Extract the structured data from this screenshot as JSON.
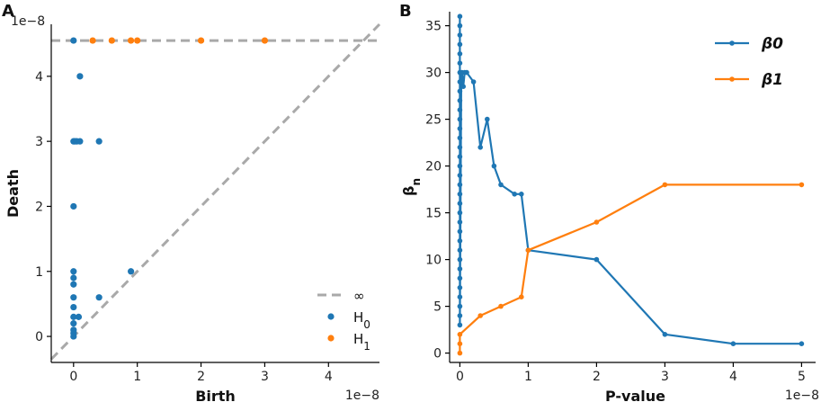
{
  "chart_data": [
    {
      "panel": "A",
      "type": "scatter",
      "xlabel": "Birth",
      "ylabel": "Death",
      "x_offset_label": "1e−8",
      "y_offset_label": "1e−8",
      "xlim": [
        -0.35,
        4.8
      ],
      "ylim": [
        -0.4,
        4.8
      ],
      "xticks": [
        0,
        1,
        2,
        3,
        4
      ],
      "yticks": [
        0,
        1,
        2,
        3,
        4
      ],
      "infinity_level": 4.55,
      "legend": {
        "position": "bottom-right",
        "entries": [
          {
            "label": "∞",
            "kind": "dashed-line",
            "color": "#a9a9a9"
          },
          {
            "label": "H",
            "sub": "0",
            "kind": "marker",
            "color": "#1f77b4"
          },
          {
            "label": "H",
            "sub": "1",
            "kind": "marker",
            "color": "#ff7f0e"
          }
        ]
      },
      "series": [
        {
          "name": "H0",
          "color": "#1f77b4",
          "points": [
            [
              0,
              4.55
            ],
            [
              0.1,
              4.0
            ],
            [
              0,
              3.0
            ],
            [
              0.02,
              3.0
            ],
            [
              0.05,
              3.0
            ],
            [
              0.1,
              3.0
            ],
            [
              0.4,
              3.0
            ],
            [
              0,
              2.0
            ],
            [
              0,
              1.0
            ],
            [
              0.9,
              1.0
            ],
            [
              0,
              0.9
            ],
            [
              0,
              0.8
            ],
            [
              0,
              0.6
            ],
            [
              0.4,
              0.6
            ],
            [
              0,
              0.45
            ],
            [
              0,
              0.3
            ],
            [
              0.08,
              0.3
            ],
            [
              0,
              0.2
            ],
            [
              0,
              0.1
            ],
            [
              0,
              0.05
            ],
            [
              0,
              0.0
            ]
          ]
        },
        {
          "name": "H1",
          "color": "#ff7f0e",
          "points": [
            [
              0.3,
              4.55
            ],
            [
              0.6,
              4.55
            ],
            [
              0.9,
              4.55
            ],
            [
              1.0,
              4.55
            ],
            [
              2.0,
              4.55
            ],
            [
              3.0,
              4.55
            ]
          ]
        }
      ]
    },
    {
      "panel": "B",
      "type": "line",
      "xlabel": "P-value",
      "ylabel": "β",
      "ylabel_sub": "n",
      "x_offset_label": "1e−8",
      "xlim": [
        -0.15,
        5.1
      ],
      "ylim": [
        -1,
        36.5
      ],
      "xticks": [
        0,
        1,
        2,
        3,
        4,
        5
      ],
      "yticks": [
        0,
        5,
        10,
        15,
        20,
        25,
        30,
        35
      ],
      "legend": {
        "position": "top-right"
      },
      "series": [
        {
          "name": "β0",
          "color": "#1f77b4",
          "x": [
            0,
            0,
            0,
            0,
            0,
            0,
            0,
            0,
            0,
            0,
            0,
            0,
            0,
            0,
            0,
            0,
            0,
            0,
            0,
            0,
            0,
            0,
            0,
            0,
            0,
            0,
            0,
            0,
            0,
            0,
            0,
            0,
            0,
            0,
            0.02,
            0.03,
            0.05,
            0.07,
            0.1,
            0.2,
            0.3,
            0.4,
            0.5,
            0.6,
            0.8,
            0.9,
            1.0,
            2.0,
            3.0,
            4.0,
            5.0
          ],
          "y": [
            36,
            35,
            34,
            33,
            32,
            31,
            30,
            29,
            28,
            27,
            26,
            25,
            24,
            23,
            22,
            21,
            20,
            19,
            18,
            17,
            16,
            15,
            14,
            13,
            12,
            11,
            10,
            9,
            8,
            7,
            6,
            5,
            4,
            3,
            29,
            30,
            28.5,
            30,
            30,
            29,
            22,
            25,
            20,
            18,
            17,
            17,
            11,
            10,
            2,
            1,
            1
          ]
        },
        {
          "name": "β1",
          "color": "#ff7f0e",
          "x": [
            0,
            0,
            0,
            0.3,
            0.6,
            0.9,
            1.0,
            2.0,
            3.0,
            5.0
          ],
          "y": [
            0,
            1,
            2,
            4,
            5,
            6,
            11,
            14,
            18,
            18
          ]
        }
      ]
    }
  ],
  "panel_labels": {
    "a": "A",
    "b": "B"
  }
}
